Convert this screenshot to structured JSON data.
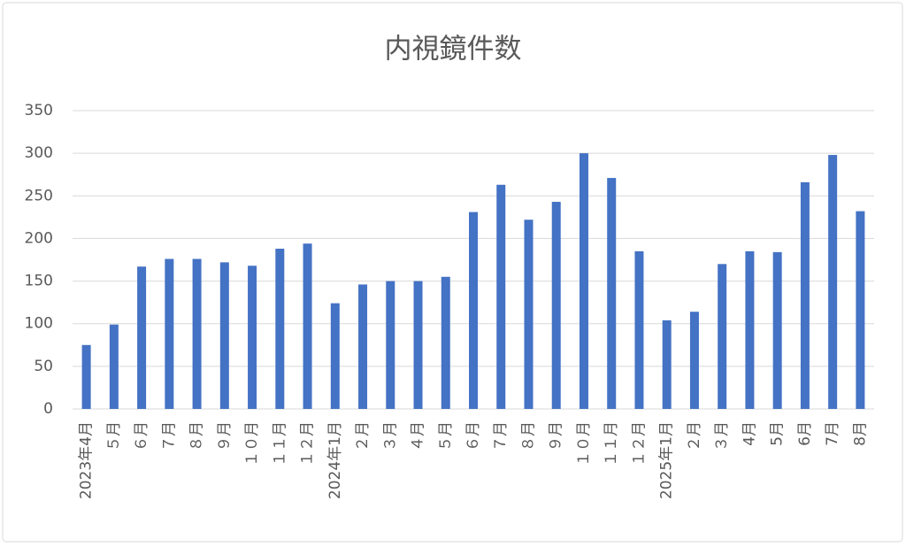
{
  "chart_data": {
    "type": "bar",
    "title": "内視鏡件数",
    "categories": [
      "2023年4月",
      "５月",
      "６月",
      "７月",
      "８月",
      "９月",
      "１０月",
      "１１月",
      "１２月",
      "2024年1月",
      "２月",
      "３月",
      "４月",
      "５月",
      "６月",
      "７月",
      "８月",
      "９月",
      "１０月",
      "１１月",
      "１２月",
      "2025年1月",
      "２月",
      "３月",
      "4月",
      "5月",
      "6月",
      "7月",
      "8月"
    ],
    "values": [
      75,
      99,
      167,
      176,
      176,
      172,
      168,
      188,
      194,
      124,
      146,
      150,
      150,
      155,
      231,
      263,
      222,
      243,
      300,
      271,
      185,
      104,
      114,
      170,
      185,
      184,
      266,
      298,
      232
    ],
    "color": "#4472c4",
    "ylim": [
      0,
      350
    ],
    "yticks": [
      0,
      50,
      100,
      150,
      200,
      250,
      300,
      350
    ],
    "grid": true
  }
}
